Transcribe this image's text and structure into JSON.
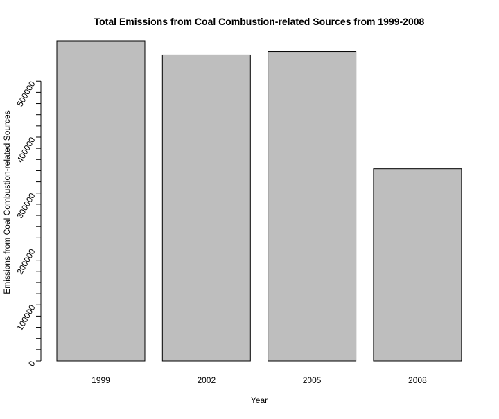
{
  "chart_data": {
    "type": "bar",
    "title": "Total Emissions from Coal Combustion-related Sources from 1999-2008",
    "xlabel": "Year",
    "ylabel": "Emissions from Coal Combustion-related Sources",
    "categories": [
      "1999",
      "2002",
      "2005",
      "2008"
    ],
    "values": [
      572126,
      546789,
      552882,
      343432
    ],
    "ylim": [
      0,
      572126
    ],
    "yticks": [
      0,
      100000,
      200000,
      300000,
      400000,
      500000
    ],
    "ytick_labels": [
      "0",
      "100000",
      "200000",
      "300000",
      "400000",
      "500000"
    ],
    "bar_color": "#bebebe",
    "bar_border_color": "#000000",
    "grid": false,
    "legend": "none"
  }
}
